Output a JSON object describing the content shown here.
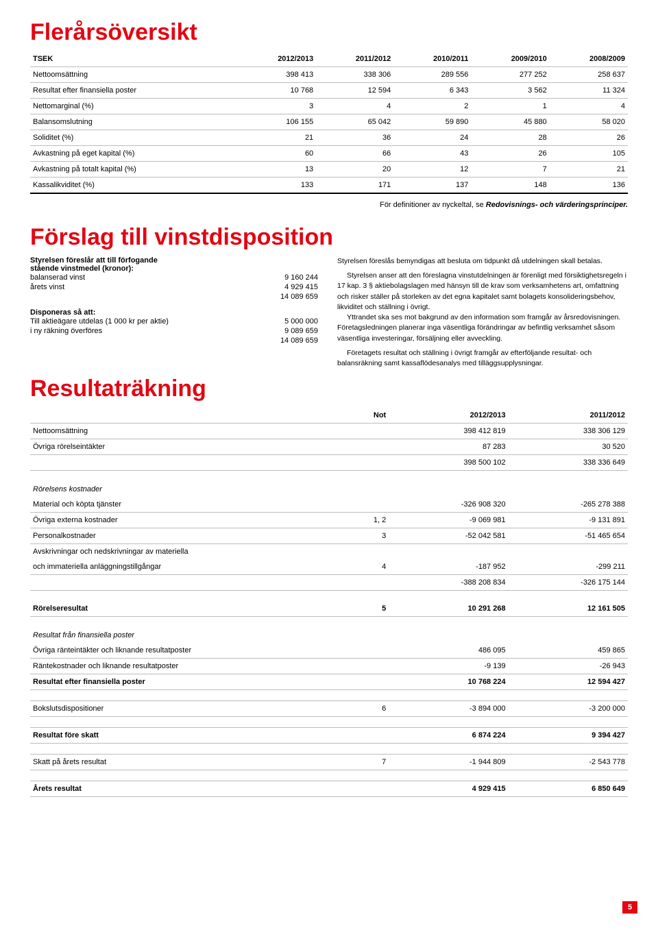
{
  "headings": {
    "overview": "Flerårsöversikt",
    "disposition": "Förslag till vinstdisposition",
    "income": "Resultaträkning"
  },
  "overview": {
    "header_label": "TSEK",
    "years": [
      "2012/2013",
      "2011/2012",
      "2010/2011",
      "2009/2010",
      "2008/2009"
    ],
    "rows": [
      {
        "label": "Nettoomsättning",
        "v": [
          "398 413",
          "338 306",
          "289 556",
          "277 252",
          "258 637"
        ]
      },
      {
        "label": "Resultat efter finansiella poster",
        "v": [
          "10 768",
          "12 594",
          "6 343",
          "3 562",
          "11 324"
        ]
      },
      {
        "label": "Nettomarginal (%)",
        "v": [
          "3",
          "4",
          "2",
          "1",
          "4"
        ]
      },
      {
        "label": "Balansomslutning",
        "v": [
          "106 155",
          "65 042",
          "59 890",
          "45 880",
          "58 020"
        ]
      },
      {
        "label": "Soliditet (%)",
        "v": [
          "21",
          "36",
          "24",
          "28",
          "26"
        ]
      },
      {
        "label": "Avkastning på eget kapital (%)",
        "v": [
          "60",
          "66",
          "43",
          "26",
          "105"
        ]
      },
      {
        "label": "Avkastning på totalt kapital (%)",
        "v": [
          "13",
          "20",
          "12",
          "7",
          "21"
        ]
      },
      {
        "label": "Kassalikviditet (%)",
        "v": [
          "133",
          "171",
          "137",
          "148",
          "136"
        ]
      }
    ],
    "defnote_prefix": "För definitioner av nyckeltal, se ",
    "defnote_em": "Redovisnings- och värderingsprinciper."
  },
  "disposition": {
    "intro_line1": "Styrelsen föreslår att till förfogande",
    "intro_line2": "stående vinstmedel (kronor):",
    "items": [
      {
        "label": "balanserad vinst",
        "value": "9 160 244"
      },
      {
        "label": "årets vinst",
        "value": "4 929 415"
      },
      {
        "label": "",
        "value": "14 089 659"
      }
    ],
    "disp_heading": "Disponeras så att:",
    "disp_items": [
      {
        "label": "Till aktieägare utdelas (1 000 kr per aktie)",
        "value": "5 000 000"
      },
      {
        "label": "i ny räkning överföres",
        "value": "9 089 659"
      },
      {
        "label": "",
        "value": "14 089 659"
      }
    ],
    "right_p1": "Styrelsen föreslås bemyndigas att besluta om tidpunkt då utdelningen skall betalas.",
    "right_p2": "Styrelsen anser att den föreslagna vinstutdelningen är förenligt med försiktighetsregeln i 17 kap. 3 § aktiebolagslagen med hänsyn till de krav som verksamhetens art, omfattning och risker ställer på storleken av det egna kapitalet samt bolagets konsolideringsbehov, likviditet och ställning i övrigt.",
    "right_p3": "Yttrandet ska ses mot bakgrund av den information som framgår av årsredovisningen. Företagsledningen planerar inga väsentliga förändringar av befintlig verksamhet såsom väsentliga investeringar, försäljning eller avveckling.",
    "right_p4": "Företagets resultat och ställning i övrigt framgår av efterföljande resultat- och balansräkning samt kassaflödesanalys med tilläggsupplysningar."
  },
  "income": {
    "col_not": "Not",
    "col_y1": "2012/2013",
    "col_y2": "2011/2012",
    "rows": [
      {
        "type": "row",
        "label": "Nettoomsättning",
        "not": "",
        "v1": "398 412 819",
        "v2": "338 306 129"
      },
      {
        "type": "row",
        "label": "Övriga rörelseintäkter",
        "not": "",
        "v1": "87 283",
        "v2": "30 520"
      },
      {
        "type": "subtotal",
        "label": "",
        "not": "",
        "v1": "398 500 102",
        "v2": "338 336 649"
      },
      {
        "type": "gap"
      },
      {
        "type": "section",
        "label": "Rörelsens kostnader"
      },
      {
        "type": "row",
        "label": "Material och köpta tjänster",
        "not": "",
        "v1": "-326 908 320",
        "v2": "-265 278 388"
      },
      {
        "type": "row",
        "label": "Övriga externa kostnader",
        "not": "1, 2",
        "v1": "-9 069 981",
        "v2": "-9 131 891"
      },
      {
        "type": "row",
        "label": "Personalkostnader",
        "not": "3",
        "v1": "-52 042 581",
        "v2": "-51 465 654"
      },
      {
        "type": "noborder",
        "label": "Avskrivningar och nedskrivningar av materiella",
        "not": "",
        "v1": "",
        "v2": ""
      },
      {
        "type": "row",
        "label": "och immateriella anläggningstillgångar",
        "not": "4",
        "v1": "-187 952",
        "v2": "-299 211"
      },
      {
        "type": "subtotal",
        "label": "",
        "not": "",
        "v1": "-388 208 834",
        "v2": "-326 175 144"
      },
      {
        "type": "gap"
      },
      {
        "type": "bold",
        "label": "Rörelseresultat",
        "not": "5",
        "v1": "10 291 268",
        "v2": "12 161 505"
      },
      {
        "type": "gap"
      },
      {
        "type": "section",
        "label": "Resultat från finansiella poster"
      },
      {
        "type": "row",
        "label": "Övriga ränteintäkter och liknande resultatposter",
        "not": "",
        "v1": "486 095",
        "v2": "459 865"
      },
      {
        "type": "row",
        "label": "Räntekostnader och liknande resultatposter",
        "not": "",
        "v1": "-9 139",
        "v2": "-26 943"
      },
      {
        "type": "bold",
        "label": "Resultat efter finansiella poster",
        "not": "",
        "v1": "10 768 224",
        "v2": "12 594 427"
      },
      {
        "type": "gapline"
      },
      {
        "type": "row",
        "label": "Bokslutsdispositioner",
        "not": "6",
        "v1": "-3 894 000",
        "v2": "-3 200 000"
      },
      {
        "type": "gapline"
      },
      {
        "type": "bold",
        "label": "Resultat före skatt",
        "not": "",
        "v1": "6 874 224",
        "v2": "9 394 427"
      },
      {
        "type": "gapline"
      },
      {
        "type": "row",
        "label": "Skatt på årets resultat",
        "not": "7",
        "v1": "-1 944 809",
        "v2": "-2 543 778"
      },
      {
        "type": "gapline"
      },
      {
        "type": "bold",
        "label": "Årets resultat",
        "not": "",
        "v1": "4 929 415",
        "v2": "6 850 649"
      }
    ]
  },
  "page_number": "5",
  "colors": {
    "brand": "#e30613",
    "rule": "#bcbcbc"
  }
}
